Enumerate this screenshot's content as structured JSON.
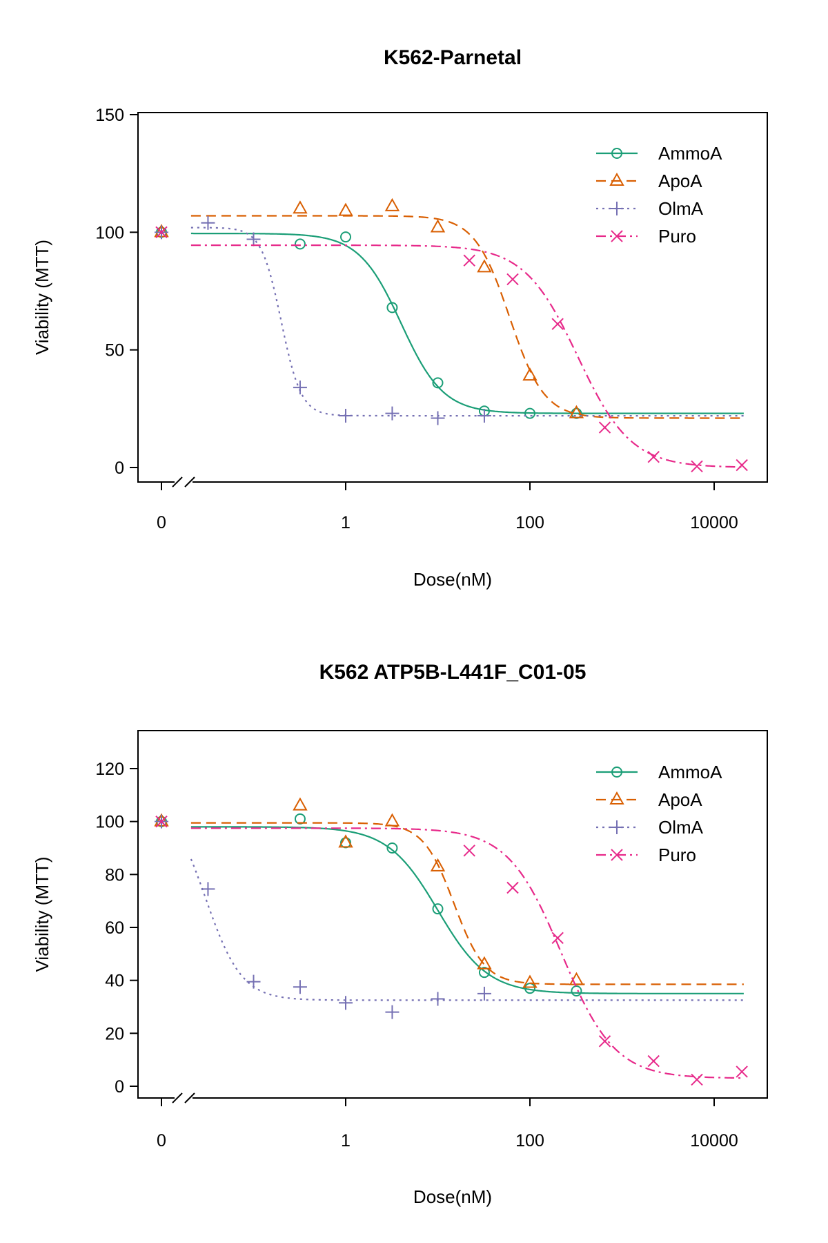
{
  "chart_data": [
    {
      "type": "line",
      "title": "K562-Parnetal",
      "xlabel": "Dose(nM)",
      "ylabel": "Viability (MTT)",
      "x_scale": "log10 with broken axis for 0",
      "xticks": [
        "0",
        "1",
        "100",
        "10000"
      ],
      "yticks": [
        "0",
        "50",
        "100",
        "150"
      ],
      "ylim": [
        0,
        150
      ],
      "legend_position": "top-right",
      "series": [
        {
          "name": "AmmoA",
          "color": "#1b9e77",
          "marker": "circle",
          "dash": "solid",
          "x": [
            0,
            0.32,
            1,
            3.2,
            10,
            32,
            100,
            320
          ],
          "y": [
            100,
            95,
            98,
            68,
            36,
            24,
            23,
            23
          ],
          "fit": {
            "top": 99.5,
            "bottom": 23,
            "ec50": 4,
            "hill": 1.9
          }
        },
        {
          "name": "ApoA",
          "color": "#d95f02",
          "marker": "triangle",
          "dash": "dashed",
          "x": [
            0,
            0.32,
            1,
            3.2,
            10,
            32,
            100,
            320
          ],
          "y": [
            100,
            110,
            109,
            111,
            102,
            85,
            39,
            23
          ],
          "fit": {
            "top": 107,
            "bottom": 21,
            "ec50": 60,
            "hill": 2.3
          }
        },
        {
          "name": "OlmA",
          "color": "#7570b3",
          "marker": "plus",
          "dash": "dotted",
          "x": [
            0,
            0.032,
            0.1,
            0.32,
            1,
            3.2,
            10,
            32
          ],
          "y": [
            100,
            104,
            97,
            34,
            22,
            23,
            21,
            22
          ],
          "fit": {
            "top": 102,
            "bottom": 22,
            "ec50": 0.2,
            "hill": 4
          }
        },
        {
          "name": "Puro",
          "color": "#e7298a",
          "marker": "x",
          "dash": "dotdash",
          "x": [
            0,
            22,
            65,
            200,
            650,
            2200,
            6500,
            20000
          ],
          "y": [
            100,
            88,
            80,
            61,
            17,
            4.5,
            0.5,
            1
          ],
          "fit": {
            "top": 94.5,
            "bottom": 0,
            "ec50": 330,
            "hill": 1.5
          }
        }
      ]
    },
    {
      "type": "line",
      "title": "K562 ATP5B-L441F_C01-05",
      "xlabel": "Dose(nM)",
      "ylabel": "Viability (MTT)",
      "x_scale": "log10 with broken axis for 0",
      "xticks": [
        "0",
        "1",
        "100",
        "10000"
      ],
      "yticks": [
        "0",
        "20",
        "40",
        "60",
        "80",
        "100",
        "120"
      ],
      "ylim": [
        0,
        130
      ],
      "legend_position": "top-right",
      "series": [
        {
          "name": "AmmoA",
          "color": "#1b9e77",
          "marker": "circle",
          "dash": "solid",
          "x": [
            0,
            0.32,
            1,
            3.2,
            10,
            32,
            100,
            320
          ],
          "y": [
            100,
            101,
            92,
            90,
            67,
            43,
            37,
            36
          ],
          "fit": {
            "top": 98,
            "bottom": 35,
            "ec50": 10,
            "hill": 1.6
          }
        },
        {
          "name": "ApoA",
          "color": "#d95f02",
          "marker": "triangle",
          "dash": "dashed",
          "x": [
            0,
            0.32,
            1,
            3.2,
            10,
            32,
            100,
            320
          ],
          "y": [
            100,
            106,
            92,
            100,
            83,
            46,
            39,
            40
          ],
          "fit": {
            "top": 99.5,
            "bottom": 38.5,
            "ec50": 15,
            "hill": 2.6
          }
        },
        {
          "name": "OlmA",
          "color": "#7570b3",
          "marker": "plus",
          "dash": "dotted",
          "x": [
            0,
            0.032,
            0.1,
            0.32,
            1,
            3.2,
            10,
            32
          ],
          "y": [
            100,
            74.5,
            39.5,
            37.5,
            31.5,
            28,
            33,
            35
          ],
          "fit": {
            "top": 110,
            "bottom": 32.5,
            "ec50": 0.03,
            "hill": 2.2
          }
        },
        {
          "name": "Puro",
          "color": "#e7298a",
          "marker": "x",
          "dash": "dotdash",
          "x": [
            0,
            22,
            65,
            200,
            650,
            2200,
            6500,
            20000
          ],
          "y": [
            100,
            89,
            75,
            56,
            17,
            9.5,
            2.5,
            5.5
          ],
          "fit": {
            "top": 97.5,
            "bottom": 3,
            "ec50": 220,
            "hill": 1.5
          }
        }
      ]
    }
  ]
}
